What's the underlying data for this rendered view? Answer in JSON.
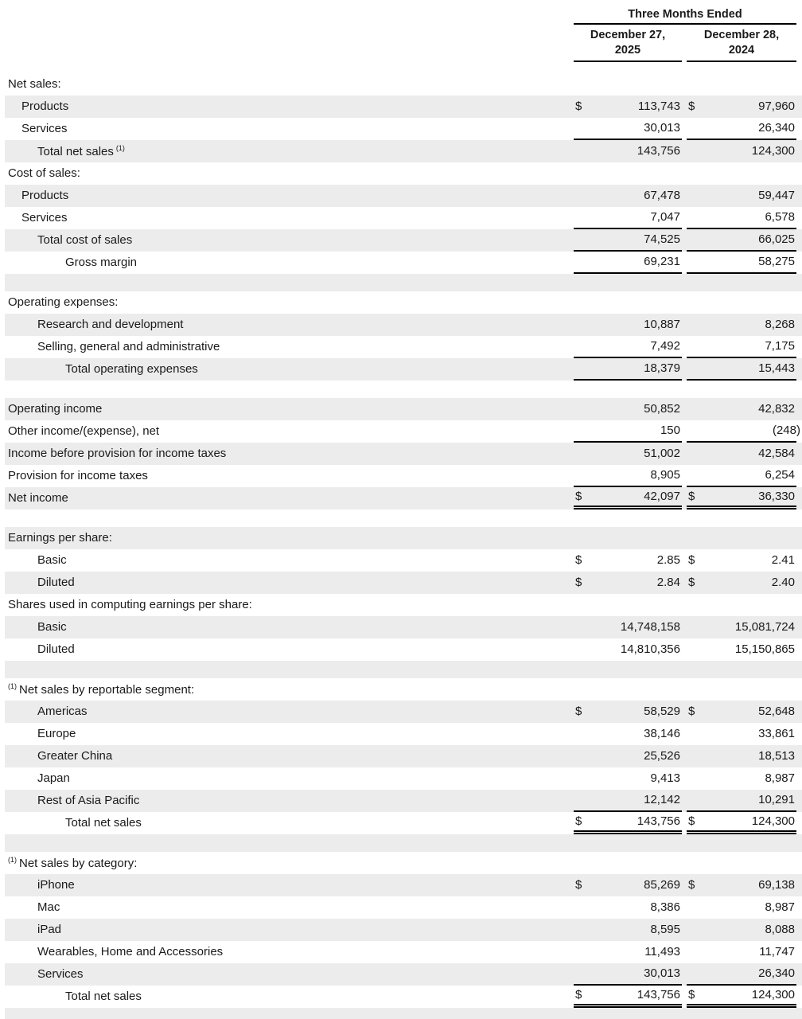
{
  "header": {
    "period_label": "Three Months Ended",
    "columns": [
      {
        "line1": "December 27,",
        "line2": "2025"
      },
      {
        "line1": "December 28,",
        "line2": "2024"
      }
    ]
  },
  "colors": {
    "stripe": "#ececec",
    "rule": "#000000",
    "text": "#1a1a1a"
  },
  "rows": [
    {
      "type": "section",
      "label": "Net sales:",
      "indent": 0,
      "shade": false
    },
    {
      "type": "data",
      "label": "Products",
      "indent": 1,
      "dollar": true,
      "v1": "113,743",
      "v2": "97,960",
      "border": "none",
      "shade": true
    },
    {
      "type": "data",
      "label": "Services",
      "indent": 1,
      "dollar": false,
      "v1": "30,013",
      "v2": "26,340",
      "border": "single",
      "shade": false
    },
    {
      "type": "data",
      "label": "Total net sales",
      "sup_after": "(1)",
      "indent": 2,
      "dollar": false,
      "v1": "143,756",
      "v2": "124,300",
      "border": "none",
      "shade": true
    },
    {
      "type": "section",
      "label": "Cost of sales:",
      "indent": 0,
      "shade": false
    },
    {
      "type": "data",
      "label": "Products",
      "indent": 1,
      "dollar": false,
      "v1": "67,478",
      "v2": "59,447",
      "border": "none",
      "shade": true
    },
    {
      "type": "data",
      "label": "Services",
      "indent": 1,
      "dollar": false,
      "v1": "7,047",
      "v2": "6,578",
      "border": "single",
      "shade": false
    },
    {
      "type": "data",
      "label": "Total cost of sales",
      "indent": 2,
      "dollar": false,
      "v1": "74,525",
      "v2": "66,025",
      "border": "single",
      "shade": true
    },
    {
      "type": "data",
      "label": "Gross margin",
      "indent": 3,
      "dollar": false,
      "v1": "69,231",
      "v2": "58,275",
      "border": "single",
      "shade": false
    },
    {
      "type": "spacer",
      "shade": true
    },
    {
      "type": "section",
      "label": "Operating expenses:",
      "indent": 0,
      "shade": false
    },
    {
      "type": "data",
      "label": "Research and development",
      "indent": 2,
      "dollar": false,
      "v1": "10,887",
      "v2": "8,268",
      "border": "none",
      "shade": true
    },
    {
      "type": "data",
      "label": "Selling, general and administrative",
      "indent": 2,
      "dollar": false,
      "v1": "7,492",
      "v2": "7,175",
      "border": "single",
      "shade": false
    },
    {
      "type": "data",
      "label": "Total operating expenses",
      "indent": 3,
      "dollar": false,
      "v1": "18,379",
      "v2": "15,443",
      "border": "single",
      "shade": true
    },
    {
      "type": "spacer",
      "shade": false
    },
    {
      "type": "data",
      "label": "Operating income",
      "indent": 0,
      "dollar": false,
      "v1": "50,852",
      "v2": "42,832",
      "border": "none",
      "shade": true
    },
    {
      "type": "data",
      "label": "Other income/(expense), net",
      "indent": 0,
      "dollar": false,
      "v1": "150",
      "v2": "(248)",
      "border": "single",
      "shade": false
    },
    {
      "type": "data",
      "label": "Income before provision for income taxes",
      "indent": 0,
      "dollar": false,
      "v1": "51,002",
      "v2": "42,584",
      "border": "none",
      "shade": true
    },
    {
      "type": "data",
      "label": "Provision for income taxes",
      "indent": 0,
      "dollar": false,
      "v1": "8,905",
      "v2": "6,254",
      "border": "single",
      "shade": false
    },
    {
      "type": "data",
      "label": "Net income",
      "indent": 0,
      "dollar": true,
      "v1": "42,097",
      "v2": "36,330",
      "border": "double",
      "shade": true
    },
    {
      "type": "spacer",
      "shade": false
    },
    {
      "type": "section",
      "label": "Earnings per share:",
      "indent": 0,
      "shade": true
    },
    {
      "type": "data",
      "label": "Basic",
      "indent": 2,
      "dollar": true,
      "v1": "2.85",
      "v2": "2.41",
      "border": "none",
      "shade": false
    },
    {
      "type": "data",
      "label": "Diluted",
      "indent": 2,
      "dollar": true,
      "v1": "2.84",
      "v2": "2.40",
      "border": "none",
      "shade": true
    },
    {
      "type": "section",
      "label": "Shares used in computing earnings per share:",
      "indent": 0,
      "shade": false
    },
    {
      "type": "data",
      "label": "Basic",
      "indent": 2,
      "dollar": false,
      "v1": "14,748,158",
      "v2": "15,081,724",
      "border": "none",
      "shade": true
    },
    {
      "type": "data",
      "label": "Diluted",
      "indent": 2,
      "dollar": false,
      "v1": "14,810,356",
      "v2": "15,150,865",
      "border": "none",
      "shade": false
    },
    {
      "type": "spacer",
      "shade": true
    },
    {
      "type": "section",
      "label": "Net sales by reportable segment:",
      "sup_before": "(1)",
      "indent": 0,
      "shade": false
    },
    {
      "type": "data",
      "label": "Americas",
      "indent": 2,
      "dollar": true,
      "v1": "58,529",
      "v2": "52,648",
      "border": "none",
      "shade": true
    },
    {
      "type": "data",
      "label": "Europe",
      "indent": 2,
      "dollar": false,
      "v1": "38,146",
      "v2": "33,861",
      "border": "none",
      "shade": false
    },
    {
      "type": "data",
      "label": "Greater China",
      "indent": 2,
      "dollar": false,
      "v1": "25,526",
      "v2": "18,513",
      "border": "none",
      "shade": true
    },
    {
      "type": "data",
      "label": "Japan",
      "indent": 2,
      "dollar": false,
      "v1": "9,413",
      "v2": "8,987",
      "border": "none",
      "shade": false
    },
    {
      "type": "data",
      "label": "Rest of Asia Pacific",
      "indent": 2,
      "dollar": false,
      "v1": "12,142",
      "v2": "10,291",
      "border": "single",
      "shade": true
    },
    {
      "type": "data",
      "label": "Total net sales",
      "indent": 3,
      "dollar": true,
      "v1": "143,756",
      "v2": "124,300",
      "border": "double",
      "shade": false
    },
    {
      "type": "spacer",
      "shade": true
    },
    {
      "type": "section",
      "label": "Net sales by category:",
      "sup_before": "(1)",
      "indent": 0,
      "shade": false
    },
    {
      "type": "data",
      "label": "iPhone",
      "indent": 2,
      "dollar": true,
      "v1": "85,269",
      "v2": "69,138",
      "border": "none",
      "shade": true
    },
    {
      "type": "data",
      "label": "Mac",
      "indent": 2,
      "dollar": false,
      "v1": "8,386",
      "v2": "8,987",
      "border": "none",
      "shade": false
    },
    {
      "type": "data",
      "label": "iPad",
      "indent": 2,
      "dollar": false,
      "v1": "8,595",
      "v2": "8,088",
      "border": "none",
      "shade": true
    },
    {
      "type": "data",
      "label": "Wearables, Home and Accessories",
      "indent": 2,
      "dollar": false,
      "v1": "11,493",
      "v2": "11,747",
      "border": "none",
      "shade": false
    },
    {
      "type": "data",
      "label": "Services",
      "indent": 2,
      "dollar": false,
      "v1": "30,013",
      "v2": "26,340",
      "border": "single",
      "shade": true
    },
    {
      "type": "data",
      "label": "Total net sales",
      "indent": 3,
      "dollar": true,
      "v1": "143,756",
      "v2": "124,300",
      "border": "double",
      "shade": false
    },
    {
      "type": "spacer",
      "shade": true
    }
  ]
}
